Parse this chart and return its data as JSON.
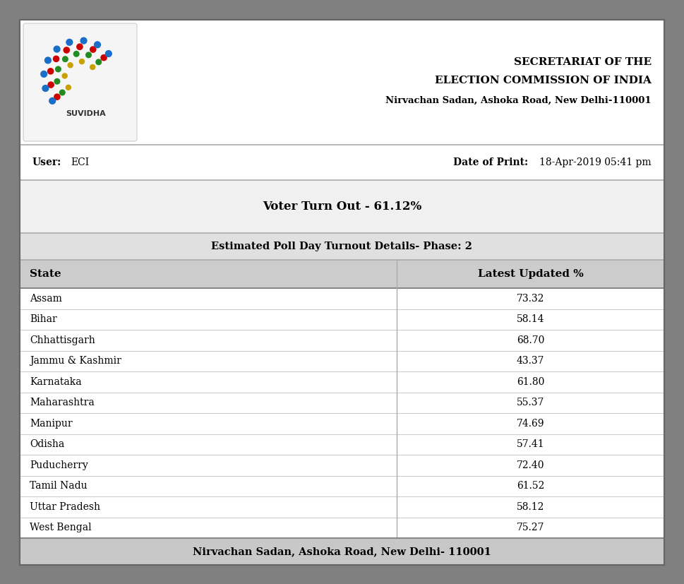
{
  "header_org_line1": "SECRETARIAT OF THE",
  "header_org_line2": "ELECTION COMMISSION OF INDIA",
  "header_org_line3": "Nirvachan Sadan, Ashoka Road, New Delhi-110001",
  "user_label": "User:",
  "user_value": "ECI",
  "date_label": "Date of Print:",
  "date_value": "18-Apr-2019 05:41 pm",
  "voter_turnout_title": "Voter Turn Out - 61.12%",
  "table_title": "Estimated Poll Day Turnout Details- Phase: 2",
  "col1_header": "State",
  "col2_header": "Latest Updated %",
  "states": [
    "Assam",
    "Bihar",
    "Chhattisgarh",
    "Jammu & Kashmir",
    "Karnataka",
    "Maharashtra",
    "Manipur",
    "Odisha",
    "Puducherry",
    "Tamil Nadu",
    "Uttar Pradesh",
    "West Bengal"
  ],
  "percentages": [
    "73.32",
    "58.14",
    "68.70",
    "43.37",
    "61.80",
    "55.37",
    "74.69",
    "57.41",
    "72.40",
    "61.52",
    "58.12",
    "75.27"
  ],
  "footer_text": "Nirvachan Sadan, Ashoka Road, New Delhi- 110001",
  "outer_bg": "#808080",
  "doc_bg": "#ffffff",
  "header_bg": "#ffffff",
  "user_row_bg": "#ffffff",
  "vto_bg": "#f0f0f0",
  "table_title_bg": "#e0e0e0",
  "col_header_bg": "#cccccc",
  "footer_bg": "#c8c8c8",
  "border_color": "#888888",
  "font_family": "DejaVu Serif",
  "logo_bg": "#f0f0f0",
  "arc_colors": [
    "#c8a000",
    "#228B22",
    "#cc0000",
    "#1a6ec8"
  ],
  "arc_radii": [
    0.028,
    0.042,
    0.054,
    0.065
  ],
  "arc_counts": [
    5,
    7,
    8,
    9
  ]
}
